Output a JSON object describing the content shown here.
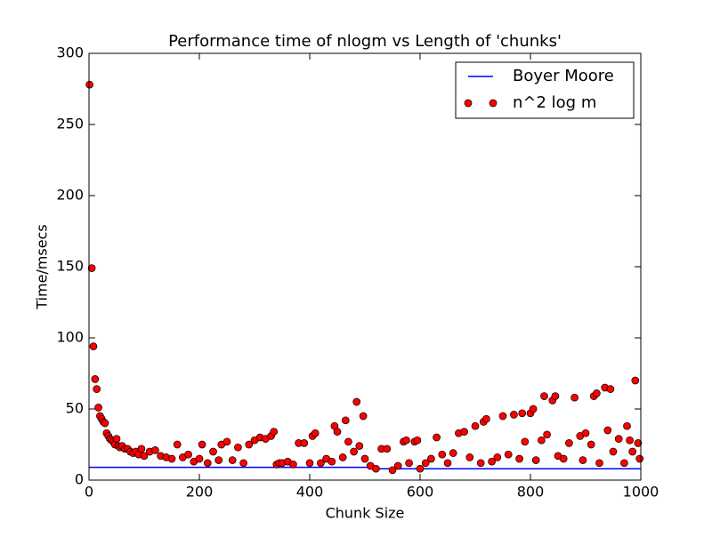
{
  "chart_data": {
    "type": "scatter",
    "title": "Performance time of nlogm vs Length of 'chunks'",
    "x_label": "Chunk Size",
    "y_label": "Time/msecs",
    "xlim": [
      0,
      1000
    ],
    "xticks": [
      0,
      200,
      400,
      600,
      800,
      1000
    ],
    "ylim": [
      0,
      300
    ],
    "yticks": [
      0,
      50,
      100,
      150,
      200,
      250,
      300
    ],
    "grid": false,
    "legend": "upper right",
    "series": [
      {
        "name": "Boyer Moore",
        "type": "line",
        "color": "#0000ff",
        "x": [
          0,
          505,
          510,
          1000
        ],
        "values": [
          9,
          9,
          8,
          8
        ]
      },
      {
        "name": "n^2 log m",
        "type": "scatter",
        "color": "#ff0000",
        "x": [
          1,
          5,
          8,
          11,
          14,
          17,
          20,
          23,
          26,
          29,
          32,
          35,
          38,
          41,
          44,
          47,
          50,
          53,
          56,
          60,
          65,
          70,
          75,
          80,
          85,
          90,
          95,
          100,
          110,
          120,
          130,
          140,
          150,
          160,
          170,
          180,
          190,
          200,
          205,
          215,
          225,
          235,
          240,
          250,
          260,
          270,
          280,
          290,
          300,
          310,
          320,
          330,
          335,
          340,
          345,
          350,
          360,
          370,
          380,
          390,
          400,
          405,
          410,
          420,
          430,
          440,
          445,
          450,
          460,
          465,
          470,
          480,
          485,
          490,
          497,
          500,
          510,
          520,
          530,
          540,
          550,
          560,
          570,
          575,
          580,
          590,
          595,
          600,
          610,
          620,
          630,
          640,
          650,
          660,
          670,
          680,
          690,
          700,
          710,
          715,
          720,
          730,
          740,
          750,
          760,
          770,
          780,
          785,
          790,
          800,
          805,
          810,
          820,
          825,
          830,
          840,
          845,
          850,
          860,
          870,
          880,
          890,
          895,
          900,
          910,
          915,
          920,
          925,
          935,
          940,
          945,
          950,
          960,
          970,
          975,
          980,
          985,
          990,
          995,
          998
        ],
        "values": [
          278,
          149,
          94,
          71,
          64,
          51,
          45,
          43,
          41,
          40,
          33,
          31,
          29,
          28,
          27,
          25,
          29,
          24,
          23,
          24,
          22,
          22,
          20,
          19,
          20,
          18,
          22,
          17,
          20,
          21,
          17,
          16,
          15,
          25,
          16,
          18,
          13,
          15,
          25,
          12,
          20,
          14,
          25,
          27,
          14,
          23,
          12,
          25,
          28,
          30,
          29,
          31,
          34,
          11,
          12,
          12,
          13,
          11,
          26,
          26,
          12,
          31,
          33,
          12,
          15,
          13,
          38,
          34,
          16,
          42,
          27,
          20,
          55,
          24,
          45,
          15,
          10,
          8,
          22,
          22,
          7,
          10,
          27,
          28,
          12,
          27,
          28,
          8,
          12,
          15,
          30,
          18,
          12,
          19,
          33,
          34,
          16,
          38,
          12,
          41,
          43,
          13,
          16,
          45,
          18,
          46,
          15,
          47,
          27,
          47,
          50,
          14,
          28,
          59,
          32,
          56,
          59,
          17,
          15,
          26,
          58,
          31,
          14,
          33,
          25,
          59,
          61,
          12,
          65,
          35,
          64,
          20,
          29,
          12,
          38,
          28,
          20,
          70,
          26,
          15
        ]
      }
    ]
  }
}
